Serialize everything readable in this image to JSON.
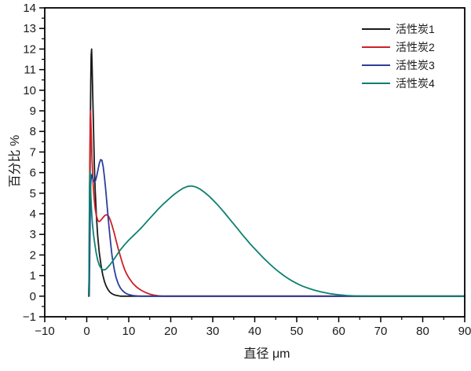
{
  "figure": {
    "background": "#ffffff",
    "frame_color": "#000000"
  },
  "chart_data": {
    "type": "line",
    "title": "",
    "xlabel": "直径 μm",
    "ylabel": "百分比 %",
    "xlim": [
      -10,
      90
    ],
    "ylim": [
      -1,
      14
    ],
    "x_major_ticks": [
      -10,
      0,
      10,
      20,
      30,
      40,
      50,
      60,
      70,
      80,
      90
    ],
    "x_minor_step": 5,
    "y_major_ticks": [
      -1,
      0,
      1,
      2,
      3,
      4,
      5,
      6,
      7,
      8,
      9,
      10,
      11,
      12,
      13,
      14
    ],
    "y_minor_step": 0.5,
    "grid": false,
    "legend_position": "top-right",
    "series": [
      {
        "name": "活性炭1",
        "color": "#1a1a1a",
        "peak": {
          "x": 1.15,
          "y": 12.0
        },
        "points": [
          [
            0.45,
            0
          ],
          [
            0.55,
            0.7
          ],
          [
            0.65,
            2.2
          ],
          [
            0.75,
            4.8
          ],
          [
            0.85,
            7.8
          ],
          [
            0.95,
            10.4
          ],
          [
            1.05,
            11.7
          ],
          [
            1.15,
            12.0
          ],
          [
            1.25,
            11.4
          ],
          [
            1.4,
            10.0
          ],
          [
            1.6,
            8.2
          ],
          [
            1.8,
            6.5
          ],
          [
            2.0,
            5.2
          ],
          [
            2.3,
            3.9
          ],
          [
            2.6,
            2.95
          ],
          [
            3.0,
            2.1
          ],
          [
            3.4,
            1.5
          ],
          [
            3.8,
            1.05
          ],
          [
            4.2,
            0.72
          ],
          [
            4.6,
            0.5
          ],
          [
            5.0,
            0.34
          ],
          [
            5.5,
            0.2
          ],
          [
            6.0,
            0.12
          ],
          [
            6.5,
            0.07
          ],
          [
            7.0,
            0.04
          ],
          [
            7.5,
            0.02
          ],
          [
            8.0,
            0
          ],
          [
            90,
            0
          ]
        ]
      },
      {
        "name": "活性炭2",
        "color": "#cc2127",
        "peak": {
          "x": 0.9,
          "y": 9.0
        },
        "points": [
          [
            0.5,
            0
          ],
          [
            0.58,
            1.8
          ],
          [
            0.66,
            4.5
          ],
          [
            0.74,
            7.0
          ],
          [
            0.82,
            8.6
          ],
          [
            0.9,
            9.0
          ],
          [
            1.0,
            8.5
          ],
          [
            1.1,
            7.7
          ],
          [
            1.25,
            6.7
          ],
          [
            1.45,
            5.7
          ],
          [
            1.7,
            4.9
          ],
          [
            2.0,
            4.25
          ],
          [
            2.3,
            3.9
          ],
          [
            2.6,
            3.7
          ],
          [
            2.9,
            3.62
          ],
          [
            3.2,
            3.65
          ],
          [
            3.6,
            3.75
          ],
          [
            4.0,
            3.85
          ],
          [
            4.4,
            3.93
          ],
          [
            4.8,
            3.95
          ],
          [
            5.2,
            3.88
          ],
          [
            5.6,
            3.7
          ],
          [
            6.0,
            3.45
          ],
          [
            6.5,
            3.1
          ],
          [
            7.0,
            2.7
          ],
          [
            7.5,
            2.3
          ],
          [
            8.0,
            1.95
          ],
          [
            8.5,
            1.6
          ],
          [
            9.0,
            1.3
          ],
          [
            9.5,
            1.08
          ],
          [
            10.0,
            0.9
          ],
          [
            11,
            0.62
          ],
          [
            12,
            0.42
          ],
          [
            13,
            0.28
          ],
          [
            14,
            0.18
          ],
          [
            15,
            0.1
          ],
          [
            16,
            0.05
          ],
          [
            17,
            0.02
          ],
          [
            18,
            0
          ],
          [
            90,
            0
          ]
        ]
      },
      {
        "name": "活性炭3",
        "color": "#2c3e9c",
        "peak": {
          "x": 3.4,
          "y": 6.65
        },
        "points": [
          [
            0.6,
            0
          ],
          [
            0.68,
            1.2
          ],
          [
            0.76,
            2.9
          ],
          [
            0.84,
            4.3
          ],
          [
            0.92,
            5.2
          ],
          [
            1.0,
            5.6
          ],
          [
            1.1,
            5.8
          ],
          [
            1.2,
            5.9
          ],
          [
            1.35,
            5.82
          ],
          [
            1.5,
            5.68
          ],
          [
            1.7,
            5.57
          ],
          [
            1.9,
            5.55
          ],
          [
            2.1,
            5.62
          ],
          [
            2.4,
            5.85
          ],
          [
            2.7,
            6.15
          ],
          [
            3.0,
            6.45
          ],
          [
            3.3,
            6.63
          ],
          [
            3.6,
            6.6
          ],
          [
            3.9,
            6.3
          ],
          [
            4.2,
            5.8
          ],
          [
            4.5,
            5.2
          ],
          [
            4.8,
            4.5
          ],
          [
            5.1,
            3.8
          ],
          [
            5.4,
            3.15
          ],
          [
            5.7,
            2.55
          ],
          [
            6.0,
            2.0
          ],
          [
            6.3,
            1.6
          ],
          [
            6.6,
            1.25
          ],
          [
            7.0,
            0.9
          ],
          [
            7.5,
            0.6
          ],
          [
            8.0,
            0.4
          ],
          [
            8.5,
            0.27
          ],
          [
            9.0,
            0.18
          ],
          [
            9.5,
            0.12
          ],
          [
            10,
            0.08
          ],
          [
            11,
            0.03
          ],
          [
            12,
            0.01
          ],
          [
            13,
            0
          ],
          [
            90,
            0
          ]
        ]
      },
      {
        "name": "活性炭4",
        "color": "#0e8070",
        "peak": {
          "x": 24.5,
          "y": 5.35
        },
        "points": [
          [
            0.5,
            0
          ],
          [
            0.56,
            1.8
          ],
          [
            0.62,
            3.8
          ],
          [
            0.68,
            5.3
          ],
          [
            0.74,
            6.0
          ],
          [
            0.8,
            6.05
          ],
          [
            0.88,
            5.6
          ],
          [
            0.96,
            5.0
          ],
          [
            1.1,
            4.3
          ],
          [
            1.3,
            3.6
          ],
          [
            1.6,
            3.0
          ],
          [
            1.9,
            2.55
          ],
          [
            2.2,
            2.15
          ],
          [
            2.6,
            1.75
          ],
          [
            3.0,
            1.5
          ],
          [
            3.5,
            1.33
          ],
          [
            4.0,
            1.27
          ],
          [
            4.5,
            1.3
          ],
          [
            5.0,
            1.4
          ],
          [
            5.5,
            1.52
          ],
          [
            6.0,
            1.65
          ],
          [
            7.0,
            1.95
          ],
          [
            8.0,
            2.25
          ],
          [
            9.0,
            2.5
          ],
          [
            10,
            2.72
          ],
          [
            11,
            2.92
          ],
          [
            12,
            3.12
          ],
          [
            13,
            3.32
          ],
          [
            14,
            3.55
          ],
          [
            15,
            3.78
          ],
          [
            16,
            4.0
          ],
          [
            17,
            4.22
          ],
          [
            18,
            4.43
          ],
          [
            19,
            4.62
          ],
          [
            20,
            4.8
          ],
          [
            21,
            4.97
          ],
          [
            22,
            5.12
          ],
          [
            23,
            5.25
          ],
          [
            24,
            5.33
          ],
          [
            25,
            5.35
          ],
          [
            26,
            5.3
          ],
          [
            27,
            5.2
          ],
          [
            28,
            5.05
          ],
          [
            29,
            4.88
          ],
          [
            30,
            4.68
          ],
          [
            31,
            4.47
          ],
          [
            32,
            4.24
          ],
          [
            33,
            4.0
          ],
          [
            34,
            3.75
          ],
          [
            35,
            3.5
          ],
          [
            36,
            3.25
          ],
          [
            37,
            3.0
          ],
          [
            38,
            2.76
          ],
          [
            39,
            2.52
          ],
          [
            40,
            2.3
          ],
          [
            41,
            2.08
          ],
          [
            42,
            1.87
          ],
          [
            43,
            1.67
          ],
          [
            44,
            1.48
          ],
          [
            45,
            1.3
          ],
          [
            46,
            1.14
          ],
          [
            47,
            0.99
          ],
          [
            48,
            0.85
          ],
          [
            49,
            0.73
          ],
          [
            50,
            0.62
          ],
          [
            51,
            0.52
          ],
          [
            52,
            0.44
          ],
          [
            53,
            0.37
          ],
          [
            54,
            0.3
          ],
          [
            55,
            0.25
          ],
          [
            56,
            0.2
          ],
          [
            57,
            0.16
          ],
          [
            58,
            0.12
          ],
          [
            59,
            0.09
          ],
          [
            60,
            0.07
          ],
          [
            61,
            0.05
          ],
          [
            62,
            0.03
          ],
          [
            63,
            0.02
          ],
          [
            64,
            0.01
          ],
          [
            66,
            0
          ],
          [
            90,
            0
          ]
        ]
      }
    ]
  }
}
